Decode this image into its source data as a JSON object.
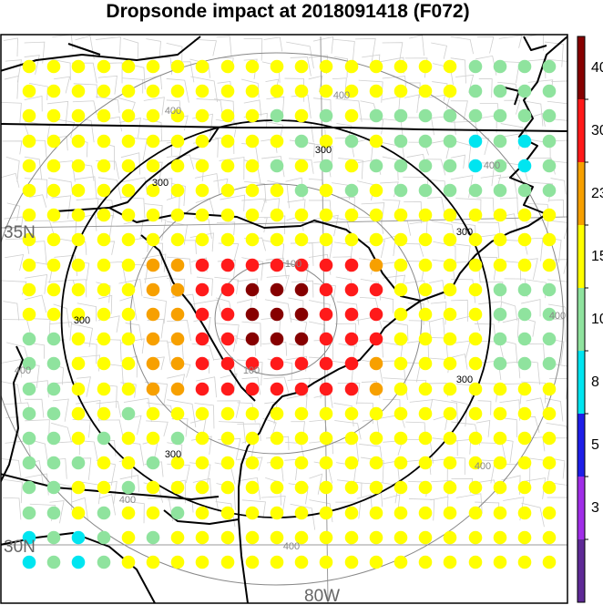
{
  "title": "Dropsonde impact at 2018091418 (F072)",
  "colorbar": {
    "bins": [
      {
        "color": "#5e2a96"
      },
      {
        "color": "#a02ee8"
      },
      {
        "color": "#1e1ee8"
      },
      {
        "color": "#00e5f0"
      },
      {
        "color": "#8fe39e"
      },
      {
        "color": "#ffff00"
      },
      {
        "color": "#f7a000"
      },
      {
        "color": "#ff1a1a"
      },
      {
        "color": "#860000"
      }
    ],
    "tick_labels": [
      "3",
      "5",
      "8",
      "10",
      "15",
      "23",
      "30",
      "40"
    ]
  },
  "rings": [
    {
      "value": 100,
      "label": "100",
      "color": "#888888"
    },
    {
      "value": 200,
      "label": "200",
      "color": "#888888"
    },
    {
      "value": 300,
      "label": "300",
      "color": "#000000"
    },
    {
      "value": 400,
      "label": "400",
      "color": "#888888"
    }
  ],
  "map_labels": {
    "lat_35": "35N",
    "lat_30": "30N",
    "lon_80": "80W"
  }
}
